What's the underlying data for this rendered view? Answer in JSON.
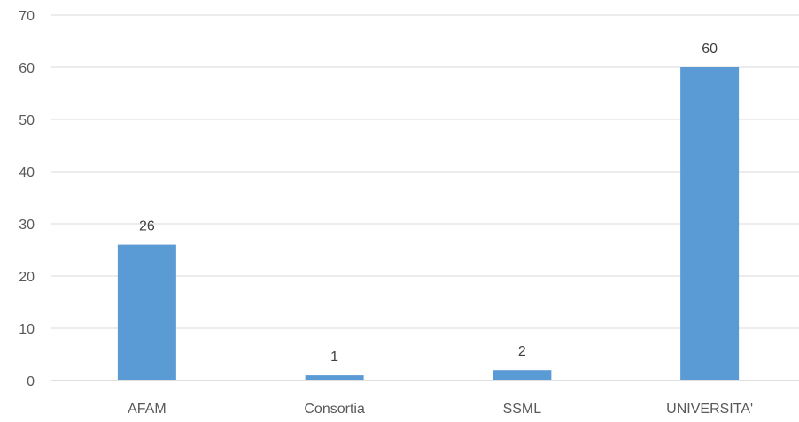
{
  "chart_data": {
    "type": "bar",
    "title": "",
    "xlabel": "",
    "ylabel": "",
    "categories": [
      "AFAM",
      "Consortia",
      "SSML",
      "UNIVERSITA'"
    ],
    "values": [
      26,
      1,
      2,
      60
    ],
    "ylim": [
      0,
      70
    ],
    "yticks": [
      0,
      10,
      20,
      30,
      40,
      50,
      60,
      70
    ],
    "grid": true,
    "legend": "none",
    "data_labels": true,
    "bar_color": "#5b9bd5"
  }
}
